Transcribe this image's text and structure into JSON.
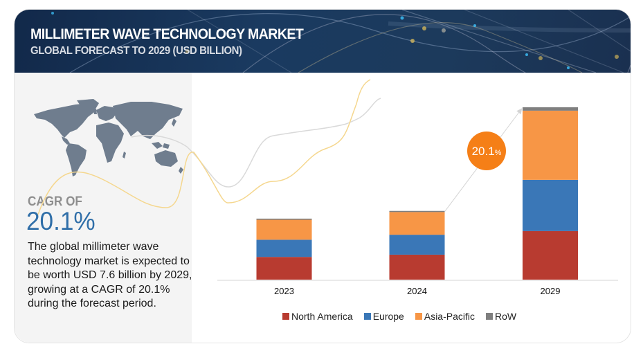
{
  "header": {
    "title": "MILLIMETER WAVE TECHNOLOGY MARKET",
    "subtitle": "GLOBAL FORECAST TO 2029 (USD BILLION)"
  },
  "left_panel": {
    "map_icon": "world-map",
    "cagr_label": "CAGR OF",
    "cagr_value": "20.1%",
    "description": "The global millimeter wave technology market is expected to be worth USD 7.6 billion by 2029, growing at a CAGR of 20.1% during the forecast period."
  },
  "callout": {
    "value": "20.1",
    "unit": "%",
    "color": "#f57f17"
  },
  "chart_data": {
    "type": "bar",
    "stacked": true,
    "title": "MILLIMETER WAVE TECHNOLOGY MARKET",
    "subtitle": "GLOBAL FORECAST TO 2029 (USD BILLION)",
    "xlabel": "",
    "ylabel": "USD Billion",
    "ylim": [
      0,
      7.6
    ],
    "grid": false,
    "legend_position": "bottom",
    "categories": [
      "2023",
      "2024",
      "2029"
    ],
    "series": [
      {
        "name": "North America",
        "color": "#b83b30",
        "values": [
          1.0,
          1.1,
          2.14
        ]
      },
      {
        "name": "Europe",
        "color": "#3a77b7",
        "values": [
          0.76,
          0.88,
          2.26
        ]
      },
      {
        "name": "Asia-Pacific",
        "color": "#f79646",
        "values": [
          0.88,
          1.0,
          3.05
        ]
      },
      {
        "name": "RoW",
        "color": "#7f7f7f",
        "values": [
          0.05,
          0.05,
          0.15
        ]
      }
    ],
    "annotations": [
      {
        "type": "growth-arrow",
        "from": "2024",
        "to": "2029",
        "label": "20.1%"
      }
    ]
  }
}
